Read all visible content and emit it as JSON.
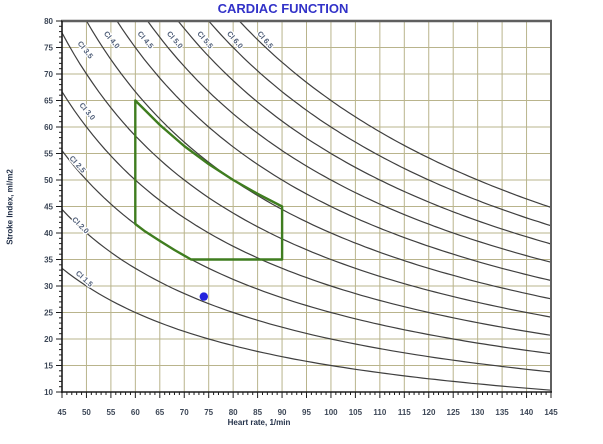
{
  "title": "CARDIAC FUNCTION",
  "colors": {
    "background": "#ffffff",
    "title": "#3232c8",
    "axis_title": "#24324a",
    "tick_label": "#3d4757",
    "grid": "#b9b48c",
    "axis": "#1c1c1c",
    "frame": "#5f5f5f",
    "curve": "#3f3f3f",
    "curve_label": "#51607a",
    "normal_zone": "#3f7d1f",
    "marker": "#2323dd"
  },
  "chart_data": {
    "type": "line",
    "title": "CARDIAC FUNCTION",
    "xlabel": "Heart rate, 1/min",
    "ylabel": "Stroke Index, ml/m2",
    "xlim": [
      45,
      145
    ],
    "ylim": [
      10,
      80
    ],
    "x_ticks": [
      45,
      50,
      55,
      60,
      65,
      70,
      75,
      80,
      85,
      90,
      95,
      100,
      105,
      110,
      115,
      120,
      125,
      130,
      135,
      140,
      145
    ],
    "y_ticks": [
      10,
      15,
      20,
      25,
      30,
      35,
      40,
      45,
      50,
      55,
      60,
      65,
      70,
      75,
      80
    ],
    "minor_tick_step": 1,
    "grid": true,
    "legend_position": "none",
    "isoline_formula": "SI = CI * 1000 / HR",
    "isolines": [
      {
        "ci": 1.5,
        "label": "CI 1.5",
        "label_hr": 49.5,
        "label_si": 31.3,
        "label_angle": 42
      },
      {
        "ci": 2.0,
        "label": "CI 2.0",
        "label_hr": 48.7,
        "label_si": 41.4,
        "label_angle": 45
      },
      {
        "ci": 2.5,
        "label": "CI 2.5",
        "label_hr": 48.1,
        "label_si": 52.9,
        "label_angle": 48
      },
      {
        "ci": 3.0,
        "label": "CI 3.0",
        "label_hr": 50.1,
        "label_si": 62.9,
        "label_angle": 50
      },
      {
        "ci": 3.5,
        "label": "CI 3.5",
        "label_hr": 49.7,
        "label_si": 74.5,
        "label_angle": 52
      },
      {
        "ci": 4.0,
        "label": "CI 4.0",
        "label_hr": 55.1,
        "label_si": 76.4,
        "label_angle": 50
      },
      {
        "ci": 4.5,
        "label": "CI 4.5",
        "label_hr": 62.0,
        "label_si": 76.4,
        "label_angle": 50
      },
      {
        "ci": 5.0,
        "label": "CI 5.0",
        "label_hr": 68.0,
        "label_si": 76.4,
        "label_angle": 50
      },
      {
        "ci": 5.5,
        "label": "CI 5.5",
        "label_hr": 74.2,
        "label_si": 76.4,
        "label_angle": 50
      },
      {
        "ci": 6.0,
        "label": "CI 6.0",
        "label_hr": 80.3,
        "label_si": 76.4,
        "label_angle": 50
      },
      {
        "ci": 6.5,
        "label": "CI 6.5",
        "label_hr": 86.5,
        "label_si": 76.4,
        "label_angle": 50
      }
    ],
    "normal_zone": {
      "description": "green outlined normal-range polygon",
      "points": [
        [
          60,
          65
        ],
        [
          65,
          60.4
        ],
        [
          70,
          56.4
        ],
        [
          75,
          53.0
        ],
        [
          80,
          50.0
        ],
        [
          85,
          47.4
        ],
        [
          90,
          45
        ],
        [
          90,
          35
        ],
        [
          71.4,
          35
        ],
        [
          68,
          36.8
        ],
        [
          65,
          38.5
        ],
        [
          62,
          40.3
        ],
        [
          60,
          41.7
        ]
      ]
    },
    "marker": {
      "hr": 74,
      "si": 28
    }
  }
}
